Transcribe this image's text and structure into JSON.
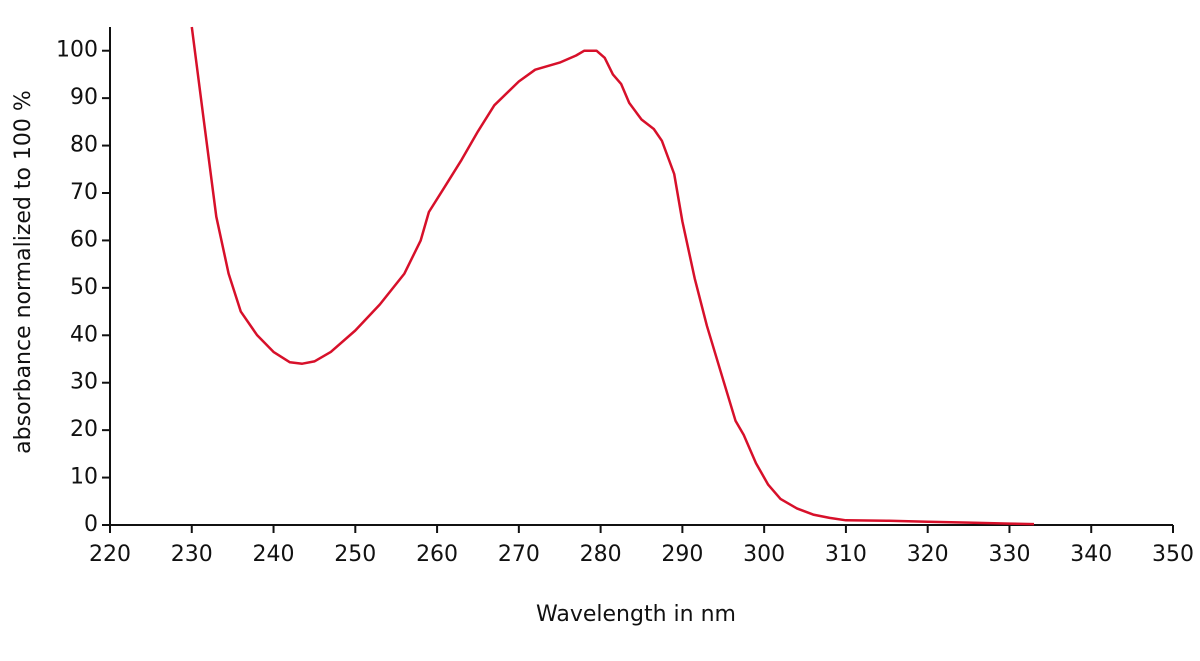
{
  "chart_data": {
    "type": "line",
    "xlabel": "Wavelength in nm",
    "ylabel": "absorbance normalized to 100 %",
    "x": [
      230,
      231.5,
      233,
      234.5,
      236,
      238,
      240,
      242,
      243.5,
      245,
      247,
      250,
      253,
      256,
      258,
      259,
      261,
      263,
      265,
      267,
      270,
      272,
      275,
      277,
      278,
      279.5,
      280.5,
      281.5,
      282.5,
      283.5,
      285,
      286.5,
      287.5,
      289,
      290,
      291.5,
      293,
      295,
      296.5,
      297.5,
      299,
      300.5,
      302,
      304,
      306,
      308,
      310,
      315,
      320,
      325,
      330,
      333
    ],
    "series": [
      {
        "color": "#d7102a",
        "values": [
          105,
          85,
          65,
          53,
          45,
          40,
          36.5,
          34.3,
          34,
          34.5,
          36.5,
          41,
          46.5,
          53,
          60,
          66,
          71.5,
          77,
          83,
          88.5,
          93.5,
          96,
          97.5,
          99,
          100,
          100,
          98.5,
          95,
          93,
          89,
          85.5,
          83.5,
          81,
          74,
          64,
          52,
          42,
          30.5,
          22,
          19,
          13,
          8.5,
          5.5,
          3.5,
          2.2,
          1.5,
          1,
          0.9,
          0.7,
          0.5,
          0.3,
          0.2
        ]
      }
    ],
    "xlim": [
      220,
      350
    ],
    "xticks": [
      220,
      230,
      240,
      250,
      260,
      270,
      280,
      290,
      300,
      310,
      320,
      330,
      340,
      350
    ],
    "ylim": [
      0,
      105
    ],
    "yticks": [
      0,
      10,
      20,
      30,
      40,
      50,
      60,
      70,
      80,
      90,
      100
    ]
  }
}
